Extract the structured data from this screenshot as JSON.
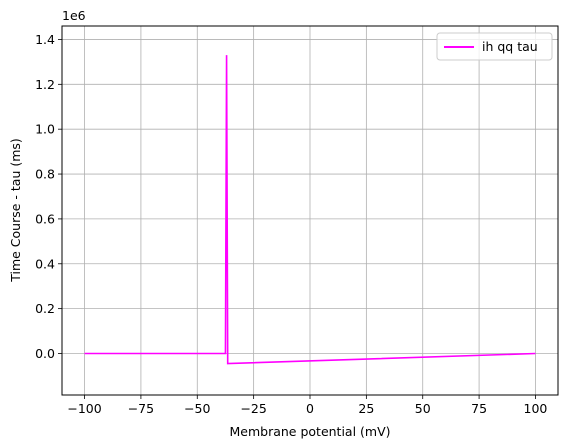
{
  "chart_data": {
    "type": "line",
    "xlabel": "Membrane potential (mV)",
    "ylabel": "Time Course - tau (ms)",
    "y_offset_label": "1e6",
    "xlim": [
      -110,
      110
    ],
    "ylim": [
      -0.185,
      1.46
    ],
    "y_scale_factor": 1000000,
    "xticks": [
      -100,
      -75,
      -50,
      -25,
      0,
      25,
      50,
      75,
      100
    ],
    "xtick_labels": [
      "−100",
      "−75",
      "−50",
      "−25",
      "0",
      "25",
      "50",
      "75",
      "100"
    ],
    "yticks": [
      0.0,
      0.2,
      0.4,
      0.6,
      0.8,
      1.0,
      1.2,
      1.4
    ],
    "ytick_labels": [
      "0.0",
      "0.2",
      "0.4",
      "0.6",
      "0.8",
      "1.0",
      "1.2",
      "1.4"
    ],
    "grid": true,
    "legend": {
      "position": "top-right"
    },
    "series": [
      {
        "name": "ih qq tau",
        "color": "#ff00ff",
        "x": [
          -100,
          -37.5,
          -37.0,
          -36.5,
          100
        ],
        "y": [
          0.0,
          0.0,
          1.33,
          -0.045,
          0.0
        ]
      }
    ]
  }
}
